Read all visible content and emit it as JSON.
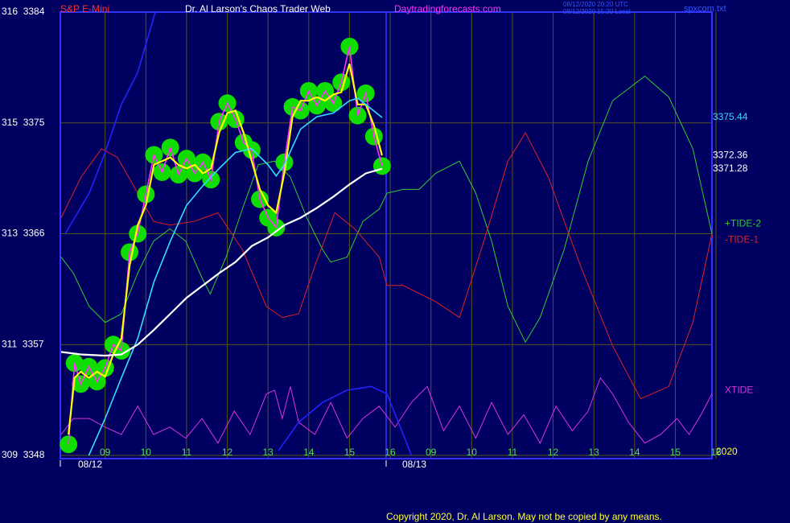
{
  "chart_data": {
    "type": "line",
    "symbol": "S&P E-Mini",
    "title": "Dr. Al Larson's Chaos Trader Web",
    "url": "Daytradingforecasts.com",
    "timestamps": [
      "08/12/2020 20:20 UTC",
      "08/12/2020 15:20 Local"
    ],
    "file": "spxcom.txt",
    "date_labels": [
      "08/12",
      "08/13"
    ],
    "year_label": "2020",
    "copyright": "Copyright 2020, Dr. Al Larson. May not be copied by any means.",
    "grid": true,
    "xlim": [
      -1.1,
      14.9
    ],
    "xticks": [
      {
        "value": 0,
        "label": "09"
      },
      {
        "value": 1,
        "label": "10"
      },
      {
        "value": 2,
        "label": "11"
      },
      {
        "value": 3,
        "label": "12"
      },
      {
        "value": 4,
        "label": "13"
      },
      {
        "value": 5,
        "label": "14"
      },
      {
        "value": 6,
        "label": "15"
      },
      {
        "value": 7,
        "label": "16"
      },
      {
        "value": 8,
        "label": "09"
      },
      {
        "value": 9,
        "label": "10"
      },
      {
        "value": 10,
        "label": "11"
      },
      {
        "value": 11,
        "label": "12"
      },
      {
        "value": 12,
        "label": "13"
      },
      {
        "value": 13,
        "label": "14"
      },
      {
        "value": 14,
        "label": "15"
      },
      {
        "value": 15,
        "label": "16"
      }
    ],
    "ylim": [
      3348,
      3384
    ],
    "yticks": [
      {
        "value": 3348,
        "label": "309  3348"
      },
      {
        "value": 3357,
        "label": "311  3357"
      },
      {
        "value": 3366,
        "label": "313  3366"
      },
      {
        "value": 3375,
        "label": "315  3375"
      },
      {
        "value": 3384,
        "label": "316  3384"
      }
    ],
    "series": [
      {
        "name": "+TIDE-2",
        "color": "#33cc33",
        "x": [
          -1.08,
          -0.78,
          -0.39,
          0,
          0.4,
          0.8,
          1.19,
          1.59,
          1.98,
          2.38,
          2.58,
          2.97,
          3.37,
          3.76,
          4.16,
          4.55,
          4.95,
          5.34,
          5.54,
          5.94,
          6.33,
          6.73,
          6.92,
          7.32,
          7.71,
          8.11,
          8.7,
          9.1,
          9.49,
          9.89,
          10.32,
          10.68,
          11.27,
          11.86,
          12.46,
          13.25,
          13.84,
          14.43,
          14.9
        ],
        "values": [
          3364.1,
          3362.8,
          3360.1,
          3358.8,
          3359.5,
          3362.8,
          3365.4,
          3366.4,
          3365.4,
          3362.4,
          3361.1,
          3364.1,
          3368.0,
          3371.6,
          3371.9,
          3370.6,
          3367.3,
          3364.7,
          3363.7,
          3364.1,
          3367.0,
          3368.0,
          3369.3,
          3369.6,
          3369.6,
          3370.9,
          3371.9,
          3369.3,
          3365.4,
          3360.1,
          3357.2,
          3359.2,
          3364.7,
          3371.9,
          3376.8,
          3378.8,
          3377.1,
          3372.9,
          3366.0
        ]
      },
      {
        "name": "-TIDE-1",
        "color": "#dd2222",
        "x": [
          -1.08,
          -0.59,
          -0.09,
          0.3,
          0.8,
          1.19,
          1.59,
          2.18,
          2.77,
          3.37,
          3.96,
          4.35,
          4.75,
          5.15,
          5.64,
          6.13,
          6.73,
          6.92,
          7.32,
          8.11,
          8.7,
          9.3,
          9.89,
          10.32,
          10.88,
          11.67,
          12.46,
          13.15,
          13.84,
          14.43,
          14.9
        ],
        "values": [
          3367.3,
          3370.6,
          3372.9,
          3372.2,
          3369.3,
          3367.0,
          3366.7,
          3367.0,
          3367.7,
          3364.7,
          3360.1,
          3359.2,
          3359.5,
          3363.4,
          3367.7,
          3366.4,
          3364.1,
          3361.8,
          3361.8,
          3360.5,
          3359.2,
          3365.4,
          3371.9,
          3374.2,
          3370.6,
          3363.4,
          3356.9,
          3352.6,
          3353.6,
          3358.8,
          3366.0
        ]
      },
      {
        "name": "XTIDE",
        "color": "#dd33dd",
        "x": [
          -1.08,
          -0.78,
          -0.39,
          0,
          0.4,
          0.8,
          1.19,
          1.59,
          1.98,
          2.38,
          2.77,
          3.17,
          3.56,
          3.96,
          4.16,
          4.35,
          4.55,
          4.75,
          5.15,
          5.54,
          5.94,
          6.33,
          6.73,
          7.12,
          7.52,
          7.91,
          8.31,
          8.7,
          9.1,
          9.49,
          9.89,
          10.28,
          10.68,
          11.07,
          11.47,
          11.86,
          12.16,
          12.46,
          12.85,
          13.25,
          13.64,
          14.04,
          14.34,
          14.63,
          14.9
        ],
        "values": [
          3349.7,
          3351.0,
          3351.0,
          3350.3,
          3349.7,
          3352.0,
          3349.7,
          3350.3,
          3349.4,
          3351.0,
          3349.0,
          3351.6,
          3349.7,
          3353.0,
          3353.3,
          3351.0,
          3353.6,
          3350.7,
          3349.7,
          3352.3,
          3349.4,
          3351.0,
          3352.0,
          3350.3,
          3352.3,
          3353.6,
          3350.0,
          3352.0,
          3349.4,
          3352.3,
          3349.7,
          3351.3,
          3349.0,
          3352.0,
          3350.0,
          3351.6,
          3354.3,
          3353.0,
          3350.7,
          3349.0,
          3349.7,
          3351.0,
          3349.7,
          3351.3,
          3353.0
        ]
      },
      {
        "color": "#2222ff",
        "x": [
          -0.98,
          -0.39,
          0,
          0.4,
          0.8,
          1.09,
          1.23,
          2.5,
          4.26,
          4.75,
          5.34,
          5.94,
          6.53,
          6.92,
          7.32,
          7.52
        ],
        "values": [
          3366.0,
          3369.3,
          3372.6,
          3376.5,
          3379.1,
          3382.4,
          3384.0,
          null,
          3348.4,
          3350.7,
          3352.3,
          3353.3,
          3353.6,
          3353.0,
          3349.7,
          3348.0
        ]
      },
      {
        "color": "#ff33ff",
        "marker_color": "#11dd00",
        "x": [
          -0.9,
          -0.75,
          -0.6,
          -0.4,
          -0.2,
          0,
          0.2,
          0.4,
          0.6,
          0.8,
          1.0,
          1.2,
          1.4,
          1.6,
          1.8,
          2.0,
          2.2,
          2.4,
          2.6,
          2.8,
          3.0,
          3.2,
          3.4,
          3.6,
          3.8,
          4.0,
          4.2,
          4.4,
          4.6,
          4.8,
          5.0,
          5.2,
          5.4,
          5.6,
          5.8,
          6.0,
          6.2,
          6.4,
          6.6,
          6.8
        ],
        "values": [
          3348.9,
          3355.5,
          3353.8,
          3355.2,
          3354.0,
          3355.1,
          3357.0,
          3356.5,
          3364.5,
          3366.0,
          3369.2,
          3372.4,
          3371.0,
          3373.0,
          3370.8,
          3372.1,
          3370.9,
          3371.8,
          3370.4,
          3375.1,
          3376.6,
          3375.3,
          3373.4,
          3372.8,
          3368.8,
          3367.3,
          3366.5,
          3371.8,
          3376.3,
          3376.0,
          3377.6,
          3376.4,
          3377.6,
          3376.6,
          3378.3,
          3381.2,
          3375.6,
          3377.4,
          3373.9,
          3371.5
        ]
      },
      {
        "color": "#ffff00",
        "label_last": true,
        "x": [
          -0.9,
          -0.75,
          -0.6,
          -0.4,
          -0.2,
          0,
          0.2,
          0.4,
          0.6,
          0.8,
          1.0,
          1.2,
          1.4,
          1.6,
          1.8,
          2.0,
          2.2,
          2.4,
          2.6,
          2.8,
          3.0,
          3.2,
          3.4,
          3.6,
          3.8,
          4.0,
          4.2,
          4.4,
          4.6,
          4.8,
          5.0,
          5.2,
          5.4,
          5.6,
          5.8,
          6.0,
          6.2,
          6.4,
          6.6,
          6.8
        ],
        "values": [
          3349.7,
          3354.3,
          3354.8,
          3354.3,
          3354.8,
          3354.4,
          3356.2,
          3357.5,
          3363.4,
          3366.7,
          3368.3,
          3371.6,
          3371.9,
          3372.2,
          3371.6,
          3371.3,
          3371.6,
          3370.9,
          3371.3,
          3374.2,
          3375.8,
          3376.0,
          3374.2,
          3371.9,
          3369.6,
          3368.3,
          3367.7,
          3370.9,
          3375.5,
          3376.8,
          3376.8,
          3377.1,
          3376.8,
          3377.3,
          3377.5,
          3379.8,
          3376.5,
          3376.5,
          3374.8,
          3372.36
        ]
      },
      {
        "color": "#33ddff",
        "label_last": true,
        "x": [
          -0.4,
          0,
          0.4,
          0.8,
          1.2,
          1.6,
          2.0,
          2.4,
          2.8,
          3.2,
          3.6,
          4.0,
          4.2,
          4.4,
          4.8,
          5.2,
          5.6,
          6.0,
          6.2,
          6.4,
          6.8
        ],
        "values": [
          3348.0,
          3351.0,
          3354.3,
          3357.5,
          3362.1,
          3365.4,
          3368.3,
          3369.9,
          3371.3,
          3372.6,
          3372.9,
          3371.6,
          3370.7,
          3371.6,
          3374.5,
          3375.5,
          3375.8,
          3376.8,
          3377.0,
          3376.5,
          3375.44
        ]
      },
      {
        "color": "#ffffff",
        "label_last": true,
        "x": [
          -1.08,
          -0.6,
          0,
          0.4,
          0.8,
          1.2,
          1.6,
          2.0,
          2.4,
          2.8,
          3.2,
          3.6,
          4.0,
          4.4,
          4.8,
          5.2,
          5.6,
          6.0,
          6.4,
          6.8
        ],
        "values": [
          3356.4,
          3356.2,
          3356.1,
          3356.2,
          3357.0,
          3358.2,
          3359.5,
          3360.8,
          3361.8,
          3362.8,
          3363.7,
          3365.0,
          3365.7,
          3366.7,
          3367.3,
          3368.1,
          3369.0,
          3370.0,
          3370.9,
          3371.28
        ]
      }
    ]
  }
}
